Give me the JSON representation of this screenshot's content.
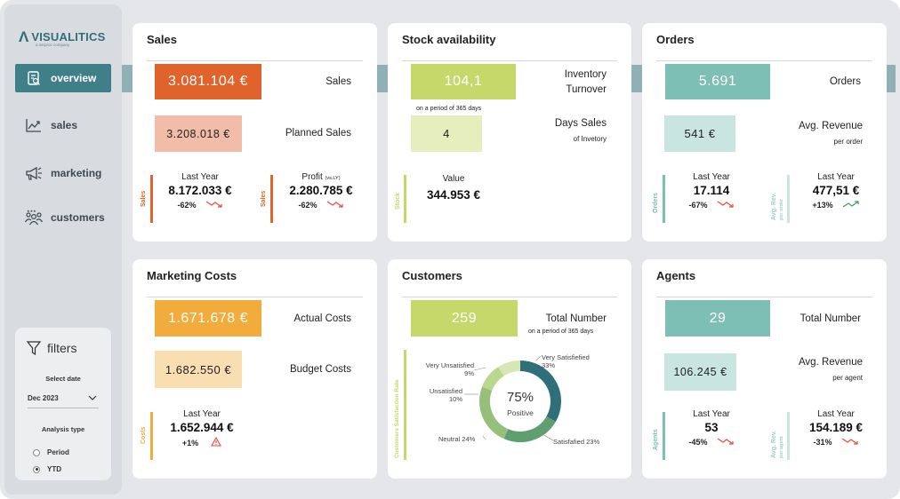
{
  "brand": {
    "name": "VISUALITICS",
    "tagline": "a serproc company"
  },
  "nav": [
    {
      "label": "overview",
      "icon": "report-icon",
      "active": true
    },
    {
      "label": "sales",
      "icon": "trend-chart-icon",
      "active": false
    },
    {
      "label": "marketing",
      "icon": "megaphone-icon",
      "active": false
    },
    {
      "label": "customers",
      "icon": "people-icon",
      "active": false
    }
  ],
  "filters": {
    "title": "filters",
    "date_label": "Select date",
    "date_value": "Dec 2023",
    "analysis_label": "Analysis type",
    "option_period": "Period",
    "option_ytd": "YTD",
    "selected": "YTD"
  },
  "sales": {
    "title": "Sales",
    "sales_value": "3.081.104 €",
    "sales_label": "Sales",
    "planned_value": "3.208.018 €",
    "planned_label": "Planned Sales",
    "side1": "Sales",
    "side2": "Sales",
    "last_year_label": "Last Year",
    "last_year_value": "8.172.033 €",
    "last_year_change": "-62%",
    "profit_label": "Profit",
    "profit_suffix": "(vs.LY)",
    "profit_value": "2.280.785 €",
    "profit_change": "-62%"
  },
  "stock": {
    "title": "Stock availability",
    "turnover_value": "104,1",
    "turnover_label1": "Inventory",
    "turnover_label2": "Turnover",
    "period_note": "on a period of 365 days",
    "days_value": "4",
    "days_label1": "Days Sales",
    "days_label2": "of Invetory",
    "side": "Stock",
    "value_label": "Value",
    "value_value": "344.953 €"
  },
  "orders": {
    "title": "Orders",
    "orders_value": "5.691",
    "orders_label": "Orders",
    "avg_value": "541 €",
    "avg_label1": "Avg. Revenue",
    "avg_label2": "per order",
    "side1": "Orders",
    "side2_a": "Avg. Rev.",
    "side2_b": "per order",
    "ly1_label": "Last Year",
    "ly1_value": "17.114",
    "ly1_change": "-67%",
    "ly2_label": "Last Year",
    "ly2_value": "477,51 €",
    "ly2_change": "+13%"
  },
  "marketing": {
    "title": "Marketing Costs",
    "actual_value": "1.671.678 €",
    "actual_label": "Actual Costs",
    "budget_value": "1.682.550 €",
    "budget_label": "Budget Costs",
    "side": "Costs",
    "ly_label": "Last Year",
    "ly_value": "1.652.944 €",
    "ly_change": "+1%"
  },
  "customers": {
    "title": "Customers",
    "total_value": "259",
    "total_label": "Total Number",
    "period_note": "on a period of 365 days",
    "side": "Customers Satisfaction Rate",
    "center_pct": "75%",
    "center_label": "Positive",
    "segments": [
      {
        "name": "Very Satisfiefied",
        "pct": "33%",
        "value": 33,
        "color": "#2f6f79"
      },
      {
        "name": "Satisfafied",
        "pct": "23%",
        "value": 23,
        "color": "#5f9e6f"
      },
      {
        "name": "Neutral",
        "pct": "24%",
        "value": 24,
        "color": "#96c07a"
      },
      {
        "name": "Unsatisfied",
        "pct": "10%",
        "value": 10,
        "color": "#b9d78e"
      },
      {
        "name": "Very Unsatisfied",
        "pct": "9%",
        "value": 9,
        "color": "#d6e7b5"
      }
    ]
  },
  "agents": {
    "title": "Agents",
    "total_value": "29",
    "total_label": "Total Number",
    "avg_value": "106.245 €",
    "avg_label1": "Avg. Revenue",
    "avg_label2": "per agent",
    "side1": "Agents",
    "side2_a": "Avg. Rev.",
    "side2_b": "per agent",
    "ly1_label": "Last Year",
    "ly1_value": "53",
    "ly1_change": "-45%",
    "ly2_label": "Last Year",
    "ly2_value": "154.189 €",
    "ly2_change": "-31%"
  },
  "colors": {
    "sales_orange": "#e0632b",
    "sales_light": "#f2bda8",
    "stock_green": "#c6d86a",
    "stock_light": "#e6eebd",
    "orders_teal": "#7dbfb5",
    "orders_light": "#c9e5e0",
    "marketing_yellow": "#f1ac3c",
    "marketing_light": "#f8deb1",
    "down_red": "#e34b3a",
    "up_green": "#3e9e5a"
  }
}
